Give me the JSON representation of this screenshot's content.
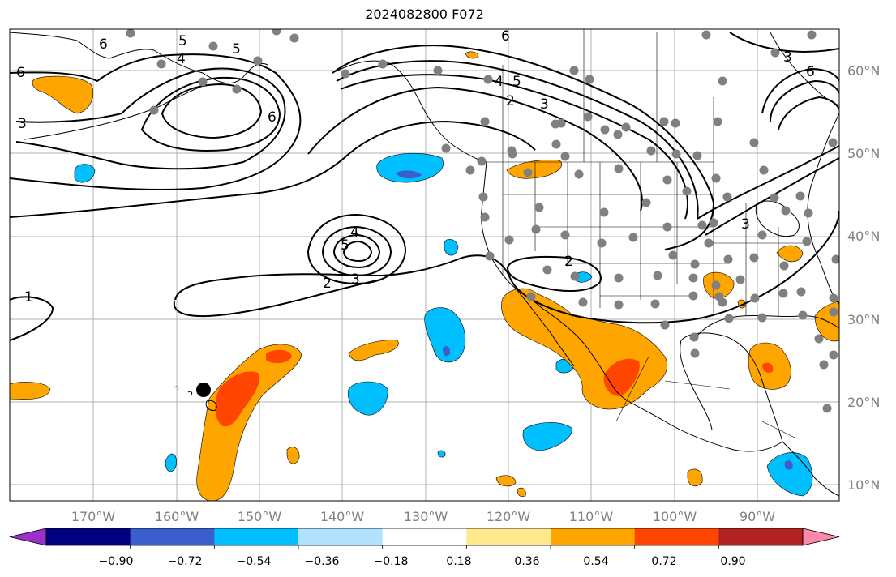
{
  "title": "2024082800 F072",
  "map": {
    "longitude_labels": [
      "170°W",
      "160°W",
      "150°W",
      "140°W",
      "130°W",
      "120°W",
      "110°W",
      "100°W",
      "90°W"
    ],
    "latitude_labels": [
      "60°N",
      "50°N",
      "40°N",
      "30°N",
      "20°N",
      "10°N"
    ],
    "contour_labels": [
      "6",
      "5",
      "4",
      "3",
      "6",
      "5",
      "2",
      "3",
      "4",
      "5",
      "6",
      "3",
      "6",
      "6",
      "3",
      "4",
      "5",
      "2",
      "3",
      "2",
      "1"
    ]
  },
  "colorbar": {
    "tick_labels": [
      "−0.90",
      "−0.72",
      "−0.54",
      "−0.36",
      "−0.18",
      "0.18",
      "0.36",
      "0.54",
      "0.72",
      "0.90"
    ],
    "colors": [
      "#9932cc",
      "#000080",
      "#3a5fcd",
      "#00bfff",
      "#b0e2ff",
      "#ffffff",
      "#ffe98c",
      "#ffa500",
      "#ff4500",
      "#b22222",
      "#ff88aa"
    ]
  },
  "legend_colors": {
    "negative_light": "#00bfff",
    "negative_dark": "#3a5fcd",
    "positive_light": "#ffa500",
    "positive_dark": "#ff4500",
    "stations": "#808080"
  }
}
